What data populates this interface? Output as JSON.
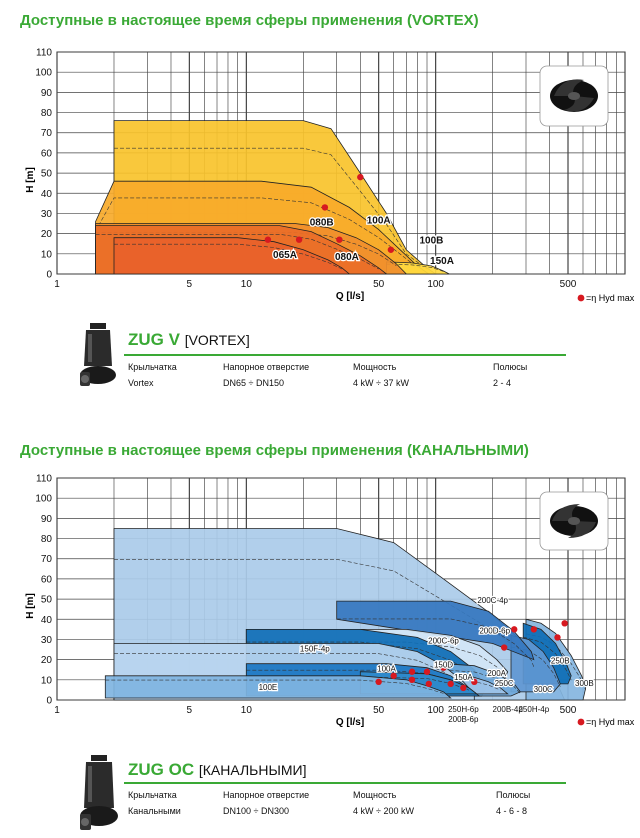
{
  "colors": {
    "accent": "#3aa935",
    "marker": "#d71920"
  },
  "chart_data": [
    {
      "type": "area",
      "title": "Доступные в настоящее время сферы применения (VORTEX)",
      "xlabel": "Q [l/s]",
      "ylabel": "H [m]",
      "x_scale": "log",
      "xlim": [
        1,
        1000
      ],
      "ylim": [
        0,
        110
      ],
      "xticks": [
        1,
        5,
        10,
        50,
        100,
        500
      ],
      "yticks": [
        0,
        10,
        20,
        30,
        40,
        50,
        60,
        70,
        80,
        90,
        100,
        110
      ],
      "grid": true,
      "legend": "=η Hyd max",
      "legend_placement": "bottom-right",
      "series": [
        {
          "name": "100A",
          "color": "#f9c32b",
          "label_at": [
            50,
            25
          ],
          "points": [
            [
              2,
              76
            ],
            [
              20,
              76
            ],
            [
              28,
              72
            ],
            [
              40,
              50
            ],
            [
              55,
              30
            ],
            [
              70,
              12
            ],
            [
              90,
              3
            ],
            [
              100,
              0
            ],
            [
              2,
              0
            ]
          ]
        },
        {
          "name": "100B",
          "color": "#f7aa2a",
          "label_at": [
            95,
            15
          ],
          "points": [
            [
              1.6,
              26
            ],
            [
              2,
              46
            ],
            [
              12,
              46
            ],
            [
              22,
              43
            ],
            [
              35,
              33
            ],
            [
              50,
              22
            ],
            [
              65,
              12
            ],
            [
              80,
              4
            ],
            [
              92,
              0
            ],
            [
              1.6,
              0
            ]
          ]
        },
        {
          "name": "150A",
          "color": "#ffd93f",
          "label_at": [
            108,
            5
          ],
          "points": [
            [
              55,
              6
            ],
            [
              75,
              5.5
            ],
            [
              95,
              4
            ],
            [
              110,
              1.5
            ],
            [
              118,
              0
            ],
            [
              55,
              0
            ]
          ]
        },
        {
          "name": "080B",
          "color": "#f08e2c",
          "label_at": [
            25,
            24
          ],
          "points": [
            [
              1.6,
              25
            ],
            [
              18,
              25
            ],
            [
              27,
              23
            ],
            [
              38,
              18
            ],
            [
              50,
              12
            ],
            [
              62,
              5
            ],
            [
              70,
              0
            ],
            [
              1.6,
              0
            ]
          ]
        },
        {
          "name": "080A",
          "color": "#ea6e28",
          "label_at": [
            34,
            7
          ],
          "points": [
            [
              1.6,
              24
            ],
            [
              15,
              24
            ],
            [
              22,
              21
            ],
            [
              30,
              15
            ],
            [
              40,
              9
            ],
            [
              50,
              3
            ],
            [
              55,
              0
            ],
            [
              1.6,
              0
            ]
          ]
        },
        {
          "name": "065A",
          "color": "#e8612a",
          "label_at": [
            16,
            8
          ],
          "points": [
            [
              2,
              18
            ],
            [
              9,
              18
            ],
            [
              14,
              16
            ],
            [
              20,
              12
            ],
            [
              27,
              7
            ],
            [
              32,
              3
            ],
            [
              35,
              0
            ],
            [
              2,
              0
            ]
          ]
        }
      ],
      "efficiency_points": [
        [
          26,
          33
        ],
        [
          40,
          48
        ],
        [
          31,
          17
        ],
        [
          19,
          17
        ],
        [
          13,
          17
        ],
        [
          58,
          12
        ]
      ]
    },
    {
      "type": "area",
      "title": "Доступные в настоящее время сферы применения (КАНАЛЬНЫМИ)",
      "xlabel": "Q [l/s]",
      "ylabel": "H [m]",
      "x_scale": "log",
      "xlim": [
        1,
        1000
      ],
      "ylim": [
        0,
        110
      ],
      "xticks": [
        1,
        5,
        10,
        50,
        100,
        500
      ],
      "yticks": [
        0,
        10,
        20,
        30,
        40,
        50,
        60,
        70,
        80,
        90,
        100,
        110
      ],
      "grid": true,
      "legend": "=η Hyd max",
      "legend_placement": "bottom-right",
      "series": [
        {
          "name": "200C-4p",
          "color": "#aacbe9",
          "label_at": [
            200,
            48
          ],
          "points": [
            [
              2,
              85
            ],
            [
              30,
              85
            ],
            [
              60,
              78
            ],
            [
              110,
              60
            ],
            [
              200,
              42
            ],
            [
              320,
              25
            ],
            [
              420,
              12
            ],
            [
              480,
              0
            ],
            [
              2,
              0
            ]
          ]
        },
        {
          "name": "300B",
          "color": "#84b5e0",
          "label_at": [
            610,
            7
          ],
          "points": [
            [
              300,
              40
            ],
            [
              360,
              38
            ],
            [
              430,
              33
            ],
            [
              520,
              22
            ],
            [
              590,
              12
            ],
            [
              620,
              6
            ],
            [
              600,
              0
            ],
            [
              300,
              0
            ]
          ]
        },
        {
          "name": "250B",
          "color": "#0d6cb5",
          "label_at": [
            455,
            18
          ],
          "points": [
            [
              290,
              38
            ],
            [
              360,
              35
            ],
            [
              430,
              28
            ],
            [
              490,
              18
            ],
            [
              520,
              12
            ],
            [
              500,
              8
            ],
            [
              290,
              8
            ]
          ]
        },
        {
          "name": "300C",
          "color": "#5f97d1",
          "label_at": [
            370,
            4
          ],
          "points": [
            [
              250,
              32
            ],
            [
              310,
              30
            ],
            [
              370,
              24
            ],
            [
              420,
              16
            ],
            [
              455,
              8
            ],
            [
              420,
              4
            ],
            [
              250,
              4
            ]
          ]
        },
        {
          "name": "200D-6p",
          "color": "#3577bf",
          "label_at": [
            205,
            33
          ],
          "points": [
            [
              30,
              49
            ],
            [
              120,
              49
            ],
            [
              190,
              44
            ],
            [
              260,
              34
            ],
            [
              320,
              24
            ],
            [
              330,
              20
            ],
            [
              200,
              28
            ],
            [
              30,
              40
            ]
          ]
        },
        {
          "name": "200C-6p",
          "color": "#d3e6f6",
          "label_at": [
            110,
            28
          ],
          "points": [
            [
              10,
              35
            ],
            [
              70,
              35
            ],
            [
              120,
              32
            ],
            [
              170,
              27
            ],
            [
              210,
              20
            ],
            [
              240,
              14
            ],
            [
              230,
              10
            ],
            [
              10,
              10
            ]
          ]
        },
        {
          "name": "150F-4p",
          "color": "#0d6cb5",
          "label_at": [
            23,
            24
          ],
          "points": [
            [
              10,
              35
            ],
            [
              40,
              35
            ],
            [
              80,
              31
            ],
            [
              120,
              24
            ],
            [
              160,
              15
            ],
            [
              185,
              6
            ],
            [
              175,
              2
            ],
            [
              10,
              2
            ]
          ]
        },
        {
          "name": "250C",
          "color": "#6fa8da",
          "label_at": [
            230,
            7
          ],
          "points": [
            [
              110,
              18
            ],
            [
              160,
              17
            ],
            [
              210,
              13
            ],
            [
              260,
              8
            ],
            [
              280,
              4
            ],
            [
              250,
              2
            ],
            [
              110,
              2
            ]
          ]
        },
        {
          "name": "200A",
          "color": "#9ec3e8",
          "label_at": [
            210,
            12
          ],
          "points": [
            [
              100,
              13
            ],
            [
              150,
              12
            ],
            [
              190,
              9
            ],
            [
              220,
              6
            ],
            [
              240,
              3
            ],
            [
              100,
              3
            ]
          ]
        },
        {
          "name": "100A",
          "color": "#b8d5ef",
          "label_at": [
            55,
            14
          ],
          "points": [
            [
              2,
              28
            ],
            [
              50,
              28
            ],
            [
              80,
              24
            ],
            [
              110,
              17
            ],
            [
              140,
              9
            ],
            [
              160,
              3
            ],
            [
              160,
              0
            ],
            [
              2,
              0
            ]
          ]
        },
        {
          "name": "150D",
          "color": "#1976c2",
          "label_at": [
            110,
            16
          ],
          "points": [
            [
              10,
              18
            ],
            [
              55,
              18
            ],
            [
              90,
              16
            ],
            [
              120,
              12
            ],
            [
              150,
              6
            ],
            [
              170,
              2
            ],
            [
              10,
              2
            ]
          ]
        },
        {
          "name": "150A",
          "color": "#2f8acb",
          "label_at": [
            140,
            10
          ],
          "points": [
            [
              40,
              14
            ],
            [
              90,
              13
            ],
            [
              120,
              10
            ],
            [
              150,
              6
            ],
            [
              165,
              3
            ],
            [
              40,
              3
            ]
          ]
        },
        {
          "name": "100E",
          "color": "#7fb4e1",
          "label_at": [
            13,
            5
          ],
          "points": [
            [
              1.8,
              12
            ],
            [
              40,
              12
            ],
            [
              70,
              10
            ],
            [
              90,
              7
            ],
            [
              110,
              4
            ],
            [
              120,
              1
            ],
            [
              1.8,
              1
            ]
          ]
        }
      ],
      "bottom_labels": [
        {
          "text": "250H-6p",
          "x": 140,
          "y": -6
        },
        {
          "text": "200B-6p",
          "x": 140,
          "y": -11
        },
        {
          "text": "200B-4p",
          "x": 240,
          "y": -6
        },
        {
          "text": "250H-4p",
          "x": 330,
          "y": -6
        }
      ],
      "efficiency_points": [
        [
          260,
          35
        ],
        [
          330,
          35
        ],
        [
          480,
          38
        ],
        [
          440,
          31
        ],
        [
          230,
          26
        ],
        [
          480,
          20
        ],
        [
          110,
          16
        ],
        [
          75,
          14
        ],
        [
          90,
          14
        ],
        [
          60,
          12
        ],
        [
          75,
          10
        ],
        [
          50,
          9
        ],
        [
          92,
          8
        ],
        [
          120,
          8
        ],
        [
          160,
          9
        ],
        [
          140,
          6
        ]
      ]
    }
  ],
  "products": [
    {
      "name": "ZUG V",
      "subtitle": "[VORTEX]",
      "headers": [
        "Крыльчатка",
        "Напорное отверстие",
        "Мощность",
        "Полюсы"
      ],
      "values": [
        "Vortex",
        "DN65 ÷ DN150",
        "4 kW ÷ 37 kW",
        "2 - 4"
      ]
    },
    {
      "name": "ZUG OC",
      "subtitle": "[КАНАЛЬНЫМИ]",
      "headers": [
        "Крыльчатка",
        "Напорное отверстие",
        "Мощность",
        "Полюсы"
      ],
      "values": [
        "Канальными",
        "DN100 ÷ DN300",
        "4 kW ÷ 200 kW",
        "4 - 6 - 8"
      ]
    }
  ]
}
